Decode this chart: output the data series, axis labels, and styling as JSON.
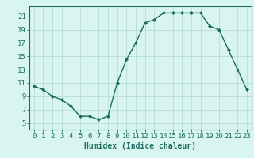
{
  "x": [
    0,
    1,
    2,
    3,
    4,
    5,
    6,
    7,
    8,
    9,
    10,
    11,
    12,
    13,
    14,
    15,
    16,
    17,
    18,
    19,
    20,
    21,
    22,
    23
  ],
  "y": [
    10.5,
    10.0,
    9.0,
    8.5,
    7.5,
    6.0,
    6.0,
    5.5,
    6.0,
    11.0,
    14.5,
    17.0,
    20.0,
    20.5,
    21.5,
    21.5,
    21.5,
    21.5,
    21.5,
    19.5,
    19.0,
    16.0,
    13.0,
    10.0
  ],
  "line_color": "#1a6b5e",
  "marker": "D",
  "marker_size": 2,
  "bg_color": "#d8f5f0",
  "grid_color": "#b8ddd8",
  "xlabel": "Humidex (Indice chaleur)",
  "yticks": [
    5,
    7,
    9,
    11,
    13,
    15,
    17,
    19,
    21
  ],
  "xticks": [
    0,
    1,
    2,
    3,
    4,
    5,
    6,
    7,
    8,
    9,
    10,
    11,
    12,
    13,
    14,
    15,
    16,
    17,
    18,
    19,
    20,
    21,
    22,
    23
  ],
  "ylim": [
    4.0,
    22.5
  ],
  "xlim": [
    -0.5,
    23.5
  ],
  "tick_color": "#1a6b5e",
  "label_fontsize": 7,
  "tick_fontsize": 6.5
}
